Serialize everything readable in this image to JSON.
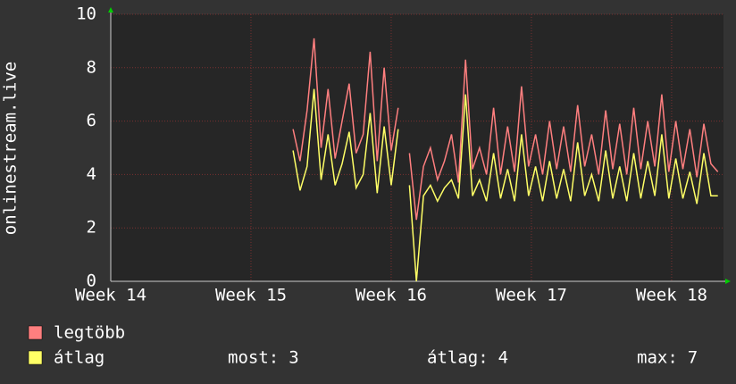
{
  "chart_data": {
    "type": "line",
    "y_label": "onlinestream.live",
    "x": [
      15.3,
      15.35,
      15.4,
      15.45,
      15.5,
      15.55,
      15.6,
      15.65,
      15.7,
      15.75,
      15.8,
      15.85,
      15.9,
      15.95,
      16.0,
      16.05,
      16.09,
      16.13,
      16.18,
      16.23,
      16.28,
      16.33,
      16.38,
      16.43,
      16.48,
      16.53,
      16.58,
      16.63,
      16.68,
      16.73,
      16.78,
      16.83,
      16.88,
      16.93,
      16.98,
      17.03,
      17.08,
      17.13,
      17.18,
      17.23,
      17.28,
      17.33,
      17.38,
      17.43,
      17.48,
      17.53,
      17.58,
      17.63,
      17.68,
      17.73,
      17.78,
      17.83,
      17.88,
      17.93,
      17.98,
      18.03,
      18.08,
      18.13,
      18.18,
      18.23,
      18.28,
      18.33
    ],
    "series": [
      {
        "name": "legtöbb",
        "color": "#ff7f7f",
        "values": [
          5.7,
          4.5,
          6.4,
          9.1,
          5.0,
          7.2,
          4.6,
          6.0,
          7.4,
          4.8,
          5.5,
          8.6,
          4.5,
          8.0,
          4.9,
          6.5,
          null,
          4.8,
          2.3,
          4.3,
          5.0,
          3.8,
          4.5,
          5.5,
          3.7,
          8.3,
          4.2,
          5.0,
          4.0,
          6.5,
          4.0,
          5.8,
          4.1,
          7.3,
          4.3,
          5.5,
          4.0,
          6.0,
          4.2,
          5.8,
          4.1,
          6.6,
          4.3,
          5.5,
          4.0,
          6.4,
          4.2,
          5.9,
          4.0,
          6.5,
          4.2,
          6.0,
          4.3,
          7.0,
          4.1,
          6.0,
          4.2,
          5.7,
          3.9,
          5.9,
          4.4,
          4.1
        ]
      },
      {
        "name": "átlag",
        "color": "#ffff66",
        "values": [
          4.9,
          3.4,
          4.3,
          7.2,
          3.8,
          5.5,
          3.6,
          4.4,
          5.6,
          3.5,
          4.0,
          6.3,
          3.3,
          5.8,
          3.6,
          5.7,
          null,
          3.6,
          0.0,
          3.2,
          3.6,
          3.0,
          3.5,
          3.8,
          3.1,
          7.0,
          3.2,
          3.8,
          3.0,
          4.8,
          3.1,
          4.2,
          3.0,
          5.5,
          3.2,
          4.3,
          3.0,
          4.5,
          3.1,
          4.2,
          3.0,
          5.2,
          3.2,
          4.0,
          3.0,
          4.9,
          3.1,
          4.3,
          3.0,
          4.8,
          3.1,
          4.5,
          3.2,
          5.5,
          3.1,
          4.6,
          3.1,
          4.1,
          2.9,
          4.8,
          3.2,
          3.2
        ]
      }
    ],
    "xlim": [
      14,
      18.37
    ],
    "xticks": [
      {
        "value": 14,
        "label": "Week 14"
      },
      {
        "value": 15,
        "label": "Week 15"
      },
      {
        "value": 16,
        "label": "Week 16"
      },
      {
        "value": 17,
        "label": "Week 17"
      },
      {
        "value": 18,
        "label": "Week 18"
      }
    ],
    "ylim": [
      0,
      10
    ],
    "yticks": [
      0,
      2,
      4,
      6,
      8,
      10
    ],
    "grid": true,
    "stats": [
      {
        "label": "most:",
        "value": 3
      },
      {
        "label": "átlag:",
        "value": 4
      },
      {
        "label": "max:",
        "value": 7
      }
    ]
  }
}
